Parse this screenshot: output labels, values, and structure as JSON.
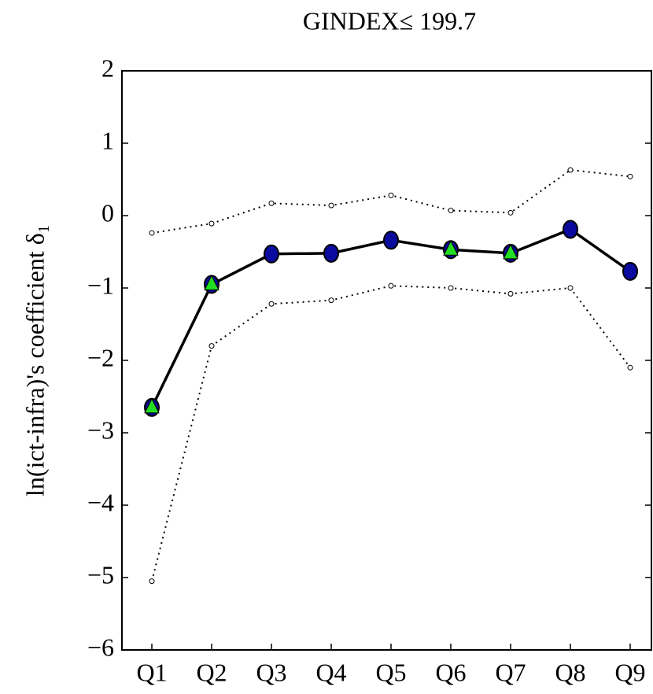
{
  "chart_data": {
    "type": "line",
    "title": "GINDEX≤ 199.7",
    "y_label": "ln(ict-infra)'s coefficient δ₁",
    "categories": [
      "Q1",
      "Q2",
      "Q3",
      "Q4",
      "Q5",
      "Q6",
      "Q7",
      "Q8",
      "Q9"
    ],
    "series": [
      {
        "color": "#000000",
        "style": "dotted",
        "values": [
          -0.24,
          -0.11,
          0.17,
          0.14,
          0.28,
          0.07,
          0.04,
          0.63,
          0.54
        ]
      },
      {
        "color": "#000000",
        "style": "dotted",
        "values": [
          -5.05,
          -1.8,
          -1.22,
          -1.17,
          -0.97,
          -1.0,
          -1.08,
          -1.0,
          -2.1
        ]
      },
      {
        "color": "#000000",
        "style": "solid",
        "values": [
          -2.65,
          -0.95,
          -0.53,
          -0.52,
          -0.34,
          -0.47,
          -0.52,
          -0.19,
          -0.77
        ],
        "point_markers": [
          "triangle",
          "triangle",
          "circle",
          "circle",
          "circle",
          "triangle",
          "triangle",
          "circle",
          "circle"
        ],
        "marker_color": "#0a0a9e",
        "triangle_color": "#22dd22"
      }
    ],
    "ylim": [
      -6,
      2
    ],
    "yticks": [
      {
        "value": -6,
        "label": "−6"
      },
      {
        "value": -5,
        "label": "−5"
      },
      {
        "value": -4,
        "label": "−4"
      },
      {
        "value": -3,
        "label": "−3"
      },
      {
        "value": -2,
        "label": "−2"
      },
      {
        "value": -1,
        "label": "−1"
      },
      0,
      1,
      2
    ]
  }
}
